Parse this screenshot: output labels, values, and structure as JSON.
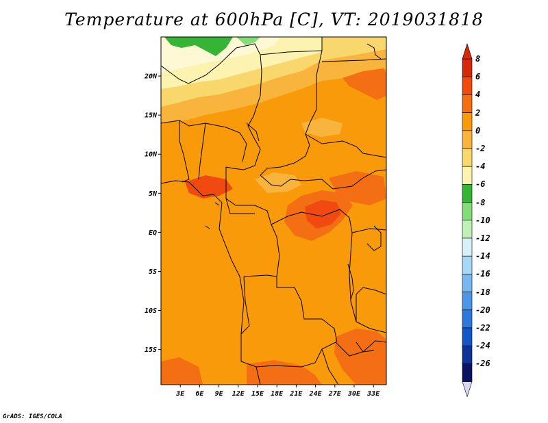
{
  "title": "Temperature at 600hPa [C], VT: 2019031818",
  "credit": "GrADS: IGES/COLA",
  "lat_labels": [
    "20N",
    "15N",
    "10N",
    "5N",
    "EQ",
    "5S",
    "10S",
    "15S"
  ],
  "lon_labels": [
    "3E",
    "6E",
    "9E",
    "12E",
    "15E",
    "18E",
    "21E",
    "24E",
    "27E",
    "30E",
    "33E"
  ],
  "colorbar": {
    "labels": [
      "8",
      "6",
      "4",
      "2",
      "0",
      "-2",
      "-4",
      "-6",
      "-8",
      "-10",
      "-12",
      "-14",
      "-16",
      "-18",
      "-20",
      "-22",
      "-24",
      "-26"
    ],
    "colors": [
      "#d52a0a",
      "#f04a10",
      "#f46e14",
      "#f89a0a",
      "#f8b43c",
      "#f8d86c",
      "#fdf3b0",
      "#36b436",
      "#82dc78",
      "#c0f0b8",
      "#d8f0fa",
      "#a8d8f8",
      "#78b8f0",
      "#4c96e6",
      "#2c78dc",
      "#1456c8",
      "#0c3496",
      "#081460"
    ],
    "low_color": "#d8d8f0",
    "high_color": "#d52a0a"
  },
  "map": {
    "background_color": "#f89a0a",
    "lat_range": [
      -19.5,
      25
    ],
    "lon_range": [
      0,
      35
    ]
  }
}
